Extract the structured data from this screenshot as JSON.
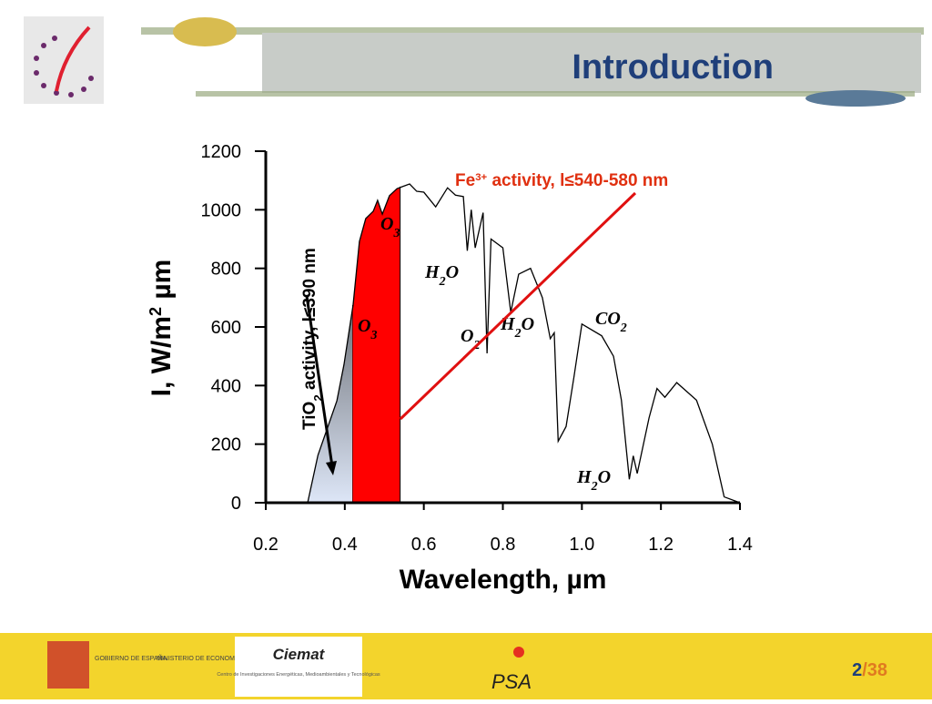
{
  "header": {
    "title": "Introduction"
  },
  "footer": {
    "gov": "GOBIERNO DE ESPAÑA",
    "ministry": "MINISTERIO DE ECONOMÍA Y COMPETITIVIDAD",
    "ciemat": "Ciemat",
    "ciemat_sub": "Centro de Investigaciones Energéticas, Medioambientales y Tecnológicas",
    "psa": "PSA",
    "page": "2",
    "total": "/38"
  },
  "chart_data": {
    "type": "line",
    "xlabel": "Wavelength, µm",
    "ylabel": {
      "text": "I, W/m",
      "sup": "2",
      "rest": " µm"
    },
    "x": [
      0.306,
      0.332,
      0.38,
      0.398,
      0.421,
      0.437,
      0.453,
      0.472,
      0.483,
      0.495,
      0.513,
      0.532,
      0.546,
      0.564,
      0.582,
      0.6,
      0.63,
      0.66,
      0.68,
      0.7,
      0.71,
      0.72,
      0.73,
      0.75,
      0.76,
      0.77,
      0.8,
      0.82,
      0.84,
      0.87,
      0.9,
      0.92,
      0.93,
      0.94,
      0.96,
      0.98,
      1.0,
      1.05,
      1.08,
      1.1,
      1.12,
      1.13,
      1.14,
      1.17,
      1.19,
      1.21,
      1.24,
      1.29,
      1.33,
      1.36,
      1.4
    ],
    "values": [
      0,
      162,
      348,
      472,
      675,
      892,
      970,
      995,
      1032,
      985,
      1048,
      1072,
      1079,
      1088,
      1063,
      1060,
      1010,
      1075,
      1050,
      1045,
      860,
      1000,
      870,
      990,
      510,
      900,
      870,
      650,
      780,
      800,
      700,
      560,
      580,
      210,
      260,
      430,
      610,
      570,
      500,
      350,
      80,
      160,
      100,
      290,
      390,
      360,
      410,
      350,
      200,
      20,
      0
    ],
    "color": "#000000",
    "regions": [
      {
        "range": [
          0.306,
          0.42
        ],
        "colors": [
          "#2a2a2a",
          "#dde6f7"
        ]
      },
      {
        "range": [
          0.42,
          0.54
        ],
        "colors": [
          "#ff0000",
          "#ff0000"
        ]
      }
    ],
    "xlim": [
      0.2,
      1.4
    ],
    "xticks": [
      0.2,
      0.4,
      0.6,
      0.8,
      {
        "value": 1,
        "label": "1.0"
      },
      1.2,
      1.4
    ],
    "ylim": [
      0,
      1200
    ],
    "yticks": [
      0,
      200,
      400,
      600,
      800,
      1000,
      1200
    ],
    "annotations": [
      {
        "text": "O",
        "sub": "3"
      },
      {
        "text": "O",
        "sub": "3"
      },
      {
        "text": "H",
        "sub": "2",
        "rest": "O"
      },
      {
        "text": "O",
        "sub": "2"
      },
      {
        "text": "H",
        "sub": "2",
        "rest": "O"
      },
      {
        "text": "CO",
        "sub": "2"
      },
      {
        "text": "H",
        "sub": "2",
        "rest": "O"
      }
    ],
    "fe_label": {
      "text": "Fe",
      "sup": "3+",
      "rest": " activity, l≤540-580 nm"
    },
    "tio2_label": {
      "text": "TiO",
      "sub": "2",
      "rest": " activity, l≤390 nm"
    }
  }
}
